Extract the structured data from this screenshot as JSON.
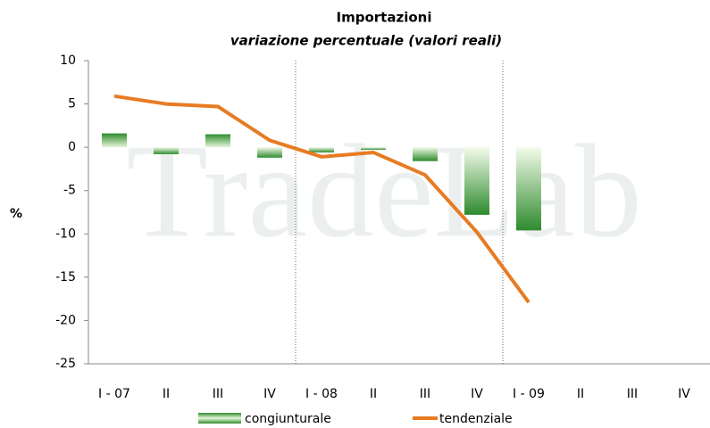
{
  "chart_data": {
    "type": "combo",
    "title": "Importazioni",
    "subtitle": "variazione percentuale (valori reali)",
    "watermark": "TradeLab",
    "ylabel": "%",
    "categories": [
      "I - 07",
      "II",
      "III",
      "IV",
      "I - 08",
      "II",
      "III",
      "IV",
      "I - 09",
      "II",
      "III",
      "IV"
    ],
    "series": [
      {
        "name": "congiunturale",
        "type": "bar",
        "color": "#3a9a3a",
        "values": [
          1.6,
          -0.8,
          1.5,
          -1.2,
          -0.6,
          -0.3,
          -1.6,
          -7.8,
          -9.6,
          null,
          null,
          null
        ]
      },
      {
        "name": "tendenziale",
        "type": "line",
        "color": "#e87b22",
        "values": [
          5.9,
          5.0,
          4.7,
          0.8,
          -1.1,
          -0.6,
          -3.2,
          -9.8,
          -17.9,
          null,
          null,
          null
        ]
      }
    ],
    "ylim": [
      -25,
      10
    ],
    "yticks": [
      -25,
      -20,
      -15,
      -10,
      -5,
      0,
      5,
      10
    ],
    "legend": "bottom"
  }
}
